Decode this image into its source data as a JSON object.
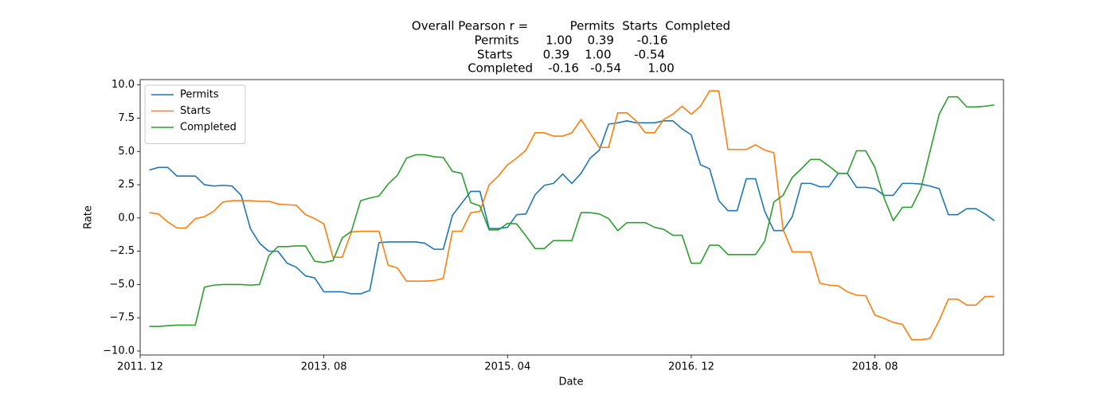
{
  "chart_data": {
    "type": "line",
    "title": [
      "Overall Pearson r =           Permits  Starts  Completed",
      "Permits       1.00    0.39      -0.16",
      "Starts        0.39    1.00      -0.54",
      "Completed    -0.16   -0.54       1.00"
    ],
    "xlabel": "Date",
    "ylabel": "Rate",
    "x": [
      "2012-01",
      "2012-02",
      "2012-03",
      "2012-04",
      "2012-05",
      "2012-06",
      "2012-07",
      "2012-08",
      "2012-09",
      "2012-10",
      "2012-11",
      "2012-12",
      "2013-01",
      "2013-02",
      "2013-03",
      "2013-04",
      "2013-05",
      "2013-06",
      "2013-07",
      "2013-08",
      "2013-09",
      "2013-10",
      "2013-11",
      "2013-12",
      "2014-01",
      "2014-02",
      "2014-03",
      "2014-04",
      "2014-05",
      "2014-06",
      "2014-07",
      "2014-08",
      "2014-09",
      "2014-10",
      "2014-11",
      "2014-12",
      "2015-01",
      "2015-02",
      "2015-03",
      "2015-04",
      "2015-05",
      "2015-06",
      "2015-07",
      "2015-08",
      "2015-09",
      "2015-10",
      "2015-11",
      "2015-12",
      "2016-01",
      "2016-02",
      "2016-03",
      "2016-04",
      "2016-05",
      "2016-06",
      "2016-07",
      "2016-08",
      "2016-09",
      "2016-10",
      "2016-11",
      "2016-12",
      "2017-01",
      "2017-02",
      "2017-03",
      "2017-04",
      "2017-05",
      "2017-06",
      "2017-07",
      "2017-08",
      "2017-09",
      "2017-10",
      "2017-11",
      "2017-12",
      "2018-01",
      "2018-02",
      "2018-03",
      "2018-04",
      "2018-05",
      "2018-06",
      "2018-07",
      "2018-08",
      "2018-09",
      "2018-10",
      "2018-11",
      "2018-12",
      "2019-01",
      "2019-02",
      "2019-03",
      "2019-04",
      "2019-05",
      "2019-06",
      "2019-07",
      "2019-08",
      "2019-09"
    ],
    "series": [
      {
        "name": "Permits",
        "color": "#1f77b4",
        "values": [
          3.6,
          3.8,
          3.8,
          3.15,
          3.15,
          3.15,
          2.5,
          2.4,
          2.45,
          2.4,
          1.7,
          -0.8,
          -1.9,
          -2.5,
          -2.5,
          -3.4,
          -3.7,
          -4.35,
          -4.5,
          -5.55,
          -5.55,
          -5.55,
          -5.7,
          -5.7,
          -5.45,
          -1.85,
          -1.8,
          -1.8,
          -1.8,
          -1.8,
          -1.9,
          -2.35,
          -2.35,
          0.2,
          1.1,
          2.0,
          2.0,
          -0.8,
          -0.8,
          -0.7,
          0.25,
          0.3,
          1.75,
          2.45,
          2.6,
          3.3,
          2.6,
          3.35,
          4.5,
          5.1,
          7.05,
          7.15,
          7.3,
          7.15,
          7.15,
          7.15,
          7.3,
          7.3,
          6.7,
          6.25,
          4.0,
          3.7,
          1.3,
          0.55,
          0.55,
          2.95,
          2.95,
          0.5,
          -0.95,
          -0.95,
          0.1,
          2.6,
          2.6,
          2.35,
          2.35,
          3.35,
          3.35,
          2.3,
          2.3,
          2.2,
          1.7,
          1.7,
          2.6,
          2.6,
          2.55,
          2.4,
          2.2,
          0.25,
          0.25,
          0.7,
          0.7,
          0.3,
          -0.2
        ]
      },
      {
        "name": "Starts",
        "color": "#ff7f0e",
        "values": [
          0.4,
          0.3,
          -0.3,
          -0.75,
          -0.75,
          -0.05,
          0.1,
          0.5,
          1.2,
          1.3,
          1.3,
          1.3,
          1.25,
          1.25,
          1.05,
          1.0,
          0.95,
          0.25,
          -0.05,
          -0.45,
          -2.95,
          -2.95,
          -1.05,
          -1.0,
          -1.0,
          -1.0,
          -3.55,
          -3.75,
          -4.75,
          -4.75,
          -4.75,
          -4.7,
          -4.55,
          -1.0,
          -1.0,
          0.4,
          0.5,
          2.5,
          3.15,
          4.0,
          4.5,
          5.1,
          6.4,
          6.4,
          6.15,
          6.15,
          6.4,
          7.4,
          6.35,
          5.3,
          5.3,
          7.9,
          7.9,
          7.3,
          6.4,
          6.4,
          7.4,
          7.8,
          8.4,
          7.8,
          8.4,
          9.55,
          9.55,
          5.15,
          5.15,
          5.15,
          5.5,
          5.1,
          4.9,
          -0.85,
          -2.55,
          -2.55,
          -2.55,
          -4.9,
          -5.05,
          -5.1,
          -5.55,
          -5.8,
          -5.85,
          -7.3,
          -7.55,
          -7.85,
          -8.0,
          -9.15,
          -9.15,
          -9.05,
          -7.7,
          -6.1,
          -6.1,
          -6.55,
          -6.55,
          -5.9,
          -5.9
        ]
      },
      {
        "name": "Completed",
        "color": "#2ca02c",
        "values": [
          -8.15,
          -8.15,
          -8.1,
          -8.05,
          -8.05,
          -8.05,
          -5.2,
          -5.05,
          -5.0,
          -5.0,
          -5.0,
          -5.05,
          -5.0,
          -2.85,
          -2.15,
          -2.15,
          -2.1,
          -2.1,
          -3.25,
          -3.35,
          -3.2,
          -1.5,
          -1.0,
          1.3,
          1.5,
          1.65,
          2.55,
          3.2,
          4.5,
          4.75,
          4.75,
          4.6,
          4.55,
          3.5,
          3.35,
          1.15,
          0.9,
          -0.9,
          -0.9,
          -0.4,
          -0.45,
          -1.35,
          -2.3,
          -2.3,
          -1.7,
          -1.7,
          -1.7,
          0.4,
          0.4,
          0.3,
          -0.05,
          -0.95,
          -0.35,
          -0.35,
          -0.35,
          -0.7,
          -0.85,
          -1.3,
          -1.3,
          -3.4,
          -3.4,
          -2.05,
          -2.05,
          -2.75,
          -2.75,
          -2.75,
          -2.75,
          -1.75,
          1.2,
          1.7,
          3.05,
          3.7,
          4.4,
          4.4,
          3.9,
          3.35,
          3.35,
          5.05,
          5.05,
          3.8,
          1.5,
          -0.2,
          0.8,
          0.8,
          2.2,
          5.0,
          7.8,
          9.1,
          9.1,
          8.35,
          8.35,
          8.4,
          8.5
        ]
      }
    ],
    "xlim": [
      "2011-12",
      "2019-10"
    ],
    "xticks": [
      {
        "value": "2011-12",
        "label": "2011. 12"
      },
      {
        "value": "2013-08",
        "label": "2013. 08"
      },
      {
        "value": "2015-04",
        "label": "2015. 04"
      },
      {
        "value": "2016-12",
        "label": "2016. 12"
      },
      {
        "value": "2018-08",
        "label": "2018. 08"
      }
    ],
    "ylim": [
      -10.3,
      10.4
    ],
    "yticks": [
      {
        "value": -10,
        "label": "−10.0"
      },
      {
        "value": -7.5,
        "label": "−7.5"
      },
      {
        "value": -5,
        "label": "−5.0"
      },
      {
        "value": -2.5,
        "label": "−2.5"
      },
      {
        "value": 0,
        "label": "0.0"
      },
      {
        "value": 2.5,
        "label": "2.5"
      },
      {
        "value": 5,
        "label": "5.0"
      },
      {
        "value": 7.5,
        "label": "7.5"
      },
      {
        "value": 10,
        "label": "10.0"
      }
    ],
    "legend": "upper left",
    "grid": false
  }
}
